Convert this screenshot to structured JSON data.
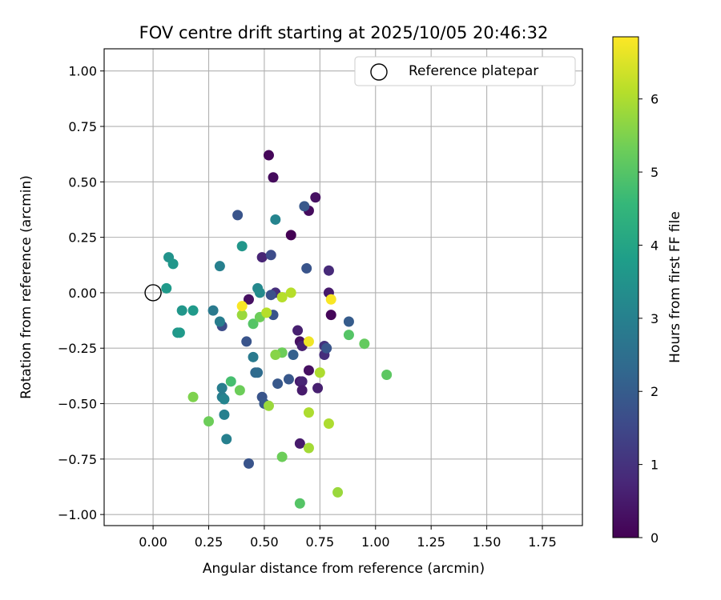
{
  "chart_data": {
    "type": "scatter",
    "title": "FOV centre drift starting at 2025/10/05 20:46:32",
    "xlabel": "Angular distance from reference (arcmin)",
    "ylabel": "Rotation from reference (arcmin)",
    "xlim": [
      -0.22,
      1.93
    ],
    "ylim": [
      -1.05,
      1.1
    ],
    "xticks": [
      0.0,
      0.25,
      0.5,
      0.75,
      1.0,
      1.25,
      1.5,
      1.75
    ],
    "xtick_labels": [
      "0.00",
      "0.25",
      "0.50",
      "0.75",
      "1.00",
      "1.25",
      "1.50",
      "1.75"
    ],
    "yticks": [
      -1.0,
      -0.75,
      -0.5,
      -0.25,
      0.0,
      0.25,
      0.5,
      0.75,
      1.0
    ],
    "ytick_labels": [
      "−1.00",
      "−0.75",
      "−0.50",
      "−0.25",
      "0.00",
      "0.25",
      "0.50",
      "0.75",
      "1.00"
    ],
    "grid": true,
    "legend": {
      "placement": "top-right",
      "entries": [
        "Reference platepar"
      ]
    },
    "reference_point": {
      "x": 0.0,
      "y": 0.0,
      "label": "Reference platepar"
    },
    "colorbar": {
      "label": "Hours from first FF file",
      "range": [
        0,
        6.85
      ],
      "ticks": [
        0,
        1,
        2,
        3,
        4,
        5,
        6
      ],
      "colormap": "viridis"
    },
    "colormap_stops": [
      "#440154",
      "#482878",
      "#3e4989",
      "#31688e",
      "#26828e",
      "#1f9e89",
      "#35b779",
      "#6ece58",
      "#b5de2b",
      "#fde725"
    ],
    "points": [
      {
        "x": 0.52,
        "y": 0.62,
        "h": 0.1
      },
      {
        "x": 0.54,
        "y": 0.52,
        "h": 0.2
      },
      {
        "x": 0.73,
        "y": 0.43,
        "h": 0.3
      },
      {
        "x": 0.7,
        "y": 0.37,
        "h": 0.2
      },
      {
        "x": 0.62,
        "y": 0.26,
        "h": 0.0
      },
      {
        "x": 0.49,
        "y": 0.16,
        "h": 0.7
      },
      {
        "x": 0.79,
        "y": 0.1,
        "h": 0.8
      },
      {
        "x": 0.55,
        "y": 0.0,
        "h": 0.9
      },
      {
        "x": 0.79,
        "y": 0.0,
        "h": 0.5
      },
      {
        "x": 0.43,
        "y": -0.03,
        "h": 0.3
      },
      {
        "x": 0.8,
        "y": -0.1,
        "h": 0.1
      },
      {
        "x": 0.65,
        "y": -0.17,
        "h": 0.6
      },
      {
        "x": 0.66,
        "y": -0.22,
        "h": 0.3
      },
      {
        "x": 0.67,
        "y": -0.24,
        "h": 0.6
      },
      {
        "x": 0.77,
        "y": -0.24,
        "h": 1.0
      },
      {
        "x": 0.77,
        "y": -0.28,
        "h": 0.9
      },
      {
        "x": 0.7,
        "y": -0.35,
        "h": 0.3
      },
      {
        "x": 0.66,
        "y": -0.4,
        "h": 0.5
      },
      {
        "x": 0.67,
        "y": -0.4,
        "h": 0.7
      },
      {
        "x": 0.67,
        "y": -0.44,
        "h": 0.5
      },
      {
        "x": 0.74,
        "y": -0.43,
        "h": 0.6
      },
      {
        "x": 0.66,
        "y": -0.68,
        "h": 0.5
      },
      {
        "x": 0.38,
        "y": 0.35,
        "h": 1.8
      },
      {
        "x": 0.68,
        "y": 0.39,
        "h": 1.9
      },
      {
        "x": 0.53,
        "y": 0.17,
        "h": 1.6
      },
      {
        "x": 0.69,
        "y": 0.11,
        "h": 1.8
      },
      {
        "x": 0.53,
        "y": -0.01,
        "h": 1.7
      },
      {
        "x": 0.54,
        "y": -0.1,
        "h": 1.8
      },
      {
        "x": 0.31,
        "y": -0.15,
        "h": 1.6
      },
      {
        "x": 0.42,
        "y": -0.22,
        "h": 1.8
      },
      {
        "x": 0.88,
        "y": -0.13,
        "h": 2.0
      },
      {
        "x": 0.78,
        "y": -0.25,
        "h": 1.8
      },
      {
        "x": 0.63,
        "y": -0.28,
        "h": 2.1
      },
      {
        "x": 0.61,
        "y": -0.39,
        "h": 1.9
      },
      {
        "x": 0.56,
        "y": -0.41,
        "h": 1.9
      },
      {
        "x": 0.49,
        "y": -0.47,
        "h": 1.8
      },
      {
        "x": 0.5,
        "y": -0.5,
        "h": 1.9
      },
      {
        "x": 0.43,
        "y": -0.77,
        "h": 1.8
      },
      {
        "x": 0.46,
        "y": -0.36,
        "h": 2.3
      },
      {
        "x": 0.47,
        "y": -0.36,
        "h": 2.4
      },
      {
        "x": 0.55,
        "y": 0.33,
        "h": 3.1
      },
      {
        "x": 0.3,
        "y": 0.12,
        "h": 3.0
      },
      {
        "x": 0.3,
        "y": -0.13,
        "h": 2.9
      },
      {
        "x": 0.27,
        "y": -0.08,
        "h": 2.8
      },
      {
        "x": 0.31,
        "y": -0.43,
        "h": 2.9
      },
      {
        "x": 0.31,
        "y": -0.47,
        "h": 2.9
      },
      {
        "x": 0.32,
        "y": -0.48,
        "h": 3.1
      },
      {
        "x": 0.32,
        "y": -0.55,
        "h": 3.0
      },
      {
        "x": 0.33,
        "y": -0.66,
        "h": 3.0
      },
      {
        "x": 0.45,
        "y": -0.29,
        "h": 2.8
      },
      {
        "x": 0.47,
        "y": 0.02,
        "h": 3.2
      },
      {
        "x": 0.48,
        "y": 0.0,
        "h": 3.3
      },
      {
        "x": 0.4,
        "y": 0.21,
        "h": 3.6
      },
      {
        "x": 0.07,
        "y": 0.16,
        "h": 3.5
      },
      {
        "x": 0.09,
        "y": 0.13,
        "h": 3.6
      },
      {
        "x": 0.06,
        "y": 0.02,
        "h": 3.7
      },
      {
        "x": 0.13,
        "y": -0.08,
        "h": 3.6
      },
      {
        "x": 0.18,
        "y": -0.08,
        "h": 3.7
      },
      {
        "x": 0.11,
        "y": -0.18,
        "h": 3.6
      },
      {
        "x": 0.12,
        "y": -0.18,
        "h": 3.7
      },
      {
        "x": 0.35,
        "y": -0.4,
        "h": 4.8
      },
      {
        "x": 0.39,
        "y": -0.44,
        "h": 5.3
      },
      {
        "x": 0.45,
        "y": -0.14,
        "h": 5.0
      },
      {
        "x": 0.48,
        "y": -0.11,
        "h": 5.3
      },
      {
        "x": 0.4,
        "y": -0.1,
        "h": 5.8
      },
      {
        "x": 0.58,
        "y": -0.27,
        "h": 5.3
      },
      {
        "x": 0.55,
        "y": -0.28,
        "h": 5.6
      },
      {
        "x": 0.58,
        "y": -0.74,
        "h": 5.3
      },
      {
        "x": 0.66,
        "y": -0.95,
        "h": 5.0
      },
      {
        "x": 0.52,
        "y": -0.51,
        "h": 5.8
      },
      {
        "x": 0.18,
        "y": -0.47,
        "h": 5.5
      },
      {
        "x": 0.25,
        "y": -0.58,
        "h": 5.3
      },
      {
        "x": 0.88,
        "y": -0.19,
        "h": 5.0
      },
      {
        "x": 0.95,
        "y": -0.23,
        "h": 5.2
      },
      {
        "x": 1.05,
        "y": -0.37,
        "h": 5.1
      },
      {
        "x": 0.75,
        "y": -0.36,
        "h": 6.0
      },
      {
        "x": 0.7,
        "y": -0.54,
        "h": 6.0
      },
      {
        "x": 0.79,
        "y": -0.59,
        "h": 6.0
      },
      {
        "x": 0.7,
        "y": -0.7,
        "h": 5.9
      },
      {
        "x": 0.83,
        "y": -0.9,
        "h": 5.8
      },
      {
        "x": 0.58,
        "y": -0.02,
        "h": 6.1
      },
      {
        "x": 0.62,
        "y": 0.0,
        "h": 6.1
      },
      {
        "x": 0.51,
        "y": -0.09,
        "h": 6.1
      },
      {
        "x": 0.4,
        "y": -0.06,
        "h": 6.8
      },
      {
        "x": 0.8,
        "y": -0.03,
        "h": 6.8
      },
      {
        "x": 0.7,
        "y": -0.22,
        "h": 6.7
      }
    ]
  }
}
